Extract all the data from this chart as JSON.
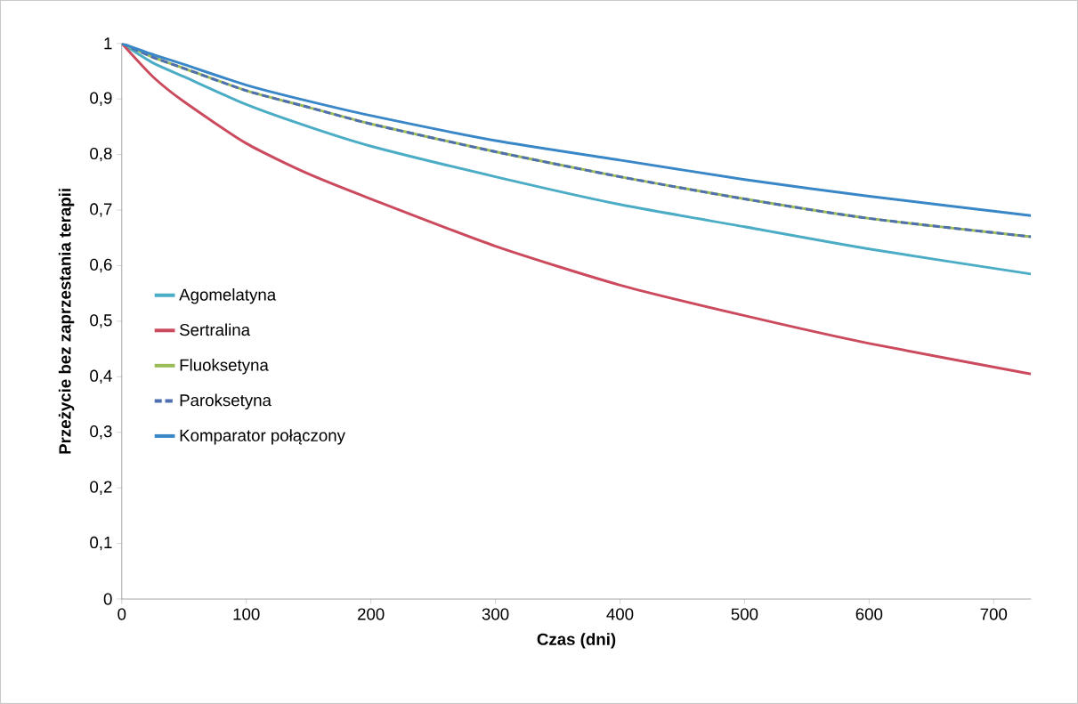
{
  "chart_data": {
    "type": "line",
    "xlabel": "Czas (dni)",
    "ylabel": "Przeżycie bez zaprzestania terapii",
    "x": [
      0,
      25,
      50,
      100,
      150,
      200,
      300,
      400,
      500,
      600,
      730
    ],
    "xlim": [
      0,
      730
    ],
    "xticks": [
      0,
      100,
      200,
      300,
      400,
      500,
      600,
      700
    ],
    "ylim": [
      0,
      1
    ],
    "yticks": [
      0,
      {
        "value": 0.1,
        "label": "0,1"
      },
      {
        "value": 0.2,
        "label": "0,2"
      },
      {
        "value": 0.3,
        "label": "0,3"
      },
      {
        "value": 0.4,
        "label": "0,4"
      },
      {
        "value": 0.5,
        "label": "0,5"
      },
      {
        "value": 0.6,
        "label": "0,6"
      },
      {
        "value": 0.7,
        "label": "0,7"
      },
      {
        "value": 0.8,
        "label": "0,8"
      },
      {
        "value": 0.9,
        "label": "0,9"
      },
      1
    ],
    "legend": "left",
    "grid": false,
    "marker": "none",
    "line_style": "solid",
    "series": [
      {
        "name": "Agomelatyna",
        "color": "#4bacc6",
        "values": [
          1,
          0.965,
          0.94,
          0.89,
          0.85,
          0.815,
          0.76,
          0.71,
          0.67,
          0.63,
          0.585
        ]
      },
      {
        "name": "Sertralina",
        "color": "#cc4a5e",
        "values": [
          1,
          0.94,
          0.895,
          0.82,
          0.765,
          0.72,
          0.635,
          0.565,
          0.51,
          0.46,
          0.405
        ]
      },
      {
        "name": "Fluoksetyna",
        "color": "#9bbb59",
        "values": [
          1,
          0.975,
          0.955,
          0.915,
          0.885,
          0.855,
          0.805,
          0.76,
          0.72,
          0.685,
          0.652
        ]
      },
      {
        "name": "Paroksetyna",
        "color": "#4f6fb0",
        "line_style": "dashed",
        "values": [
          1,
          0.975,
          0.955,
          0.915,
          0.885,
          0.855,
          0.805,
          0.76,
          0.72,
          0.685,
          0.652
        ]
      },
      {
        "name": "Komparator połączony",
        "color": "#3a87c8",
        "values": [
          1,
          0.98,
          0.962,
          0.925,
          0.896,
          0.87,
          0.825,
          0.79,
          0.755,
          0.725,
          0.69
        ]
      }
    ]
  }
}
